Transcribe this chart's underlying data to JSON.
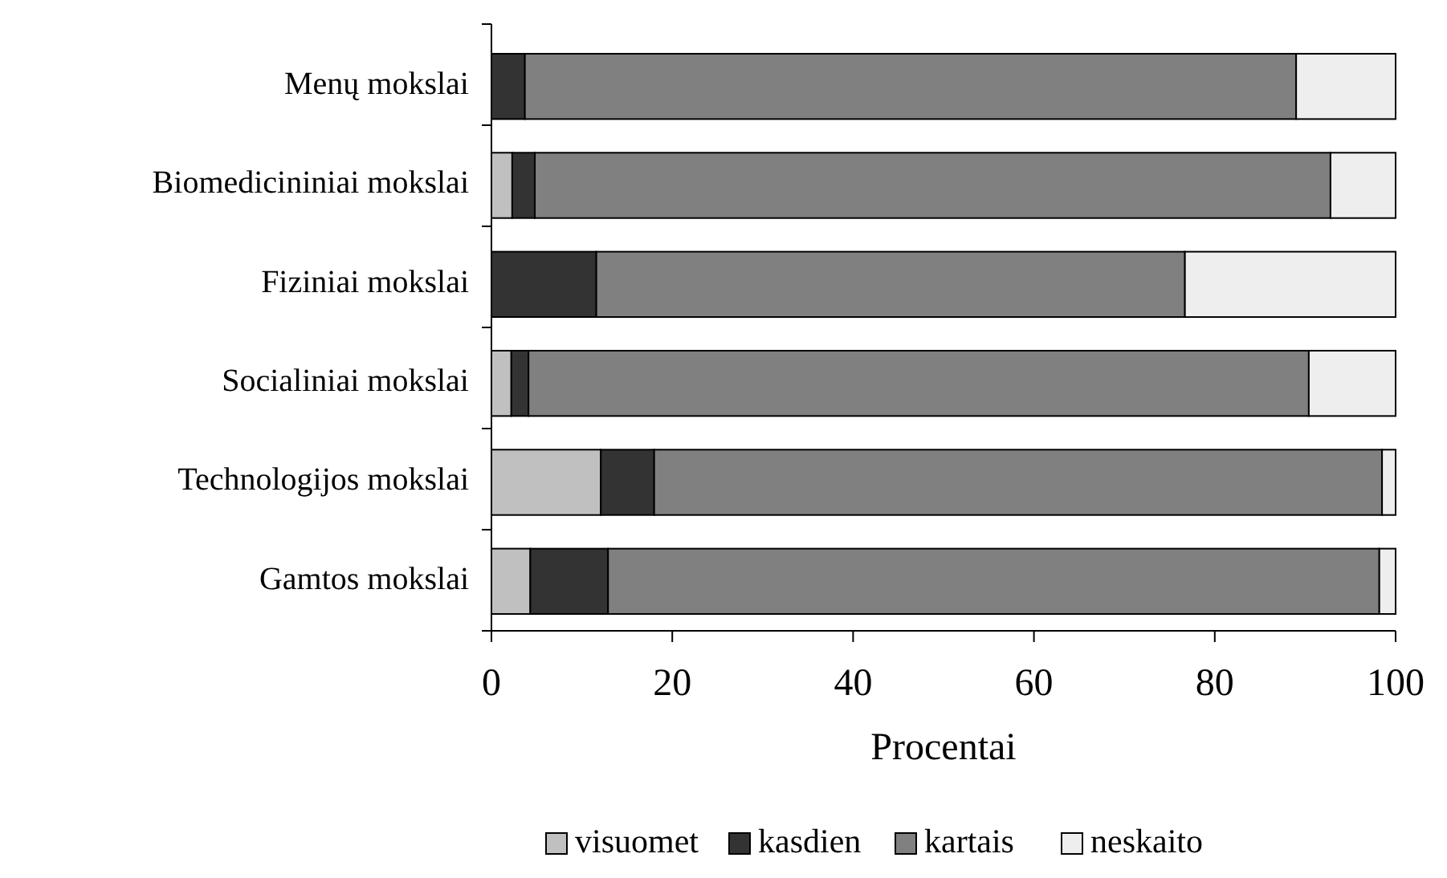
{
  "chart_data": {
    "type": "bar",
    "orientation": "horizontal",
    "stacked": true,
    "xlabel": "Procentai",
    "categories": [
      "Menų mokslai",
      "Biomedicininiai mokslai",
      "Fiziniai mokslai",
      "Socialiniai mokslai",
      "Technologijos mokslai",
      "Gamtos mokslai"
    ],
    "series": [
      {
        "name": "visuomet",
        "color": "#c0c0c0",
        "values": [
          0,
          2.3,
          0,
          2.2,
          12.1,
          4.3
        ]
      },
      {
        "name": "kasdien",
        "color": "#333333",
        "values": [
          3.7,
          2.5,
          11.6,
          1.9,
          5.9,
          8.6
        ]
      },
      {
        "name": "kartais",
        "color": "#808080",
        "values": [
          85.3,
          88.0,
          65.1,
          86.3,
          80.5,
          85.3
        ]
      },
      {
        "name": "neskaito",
        "color": "#eeeeee",
        "values": [
          11.0,
          7.2,
          23.3,
          9.6,
          1.5,
          1.8
        ]
      }
    ],
    "xlim": [
      0,
      100
    ],
    "xticks": [
      0,
      20,
      40,
      60,
      80,
      100
    ],
    "grid": false,
    "legend": "bottom"
  }
}
